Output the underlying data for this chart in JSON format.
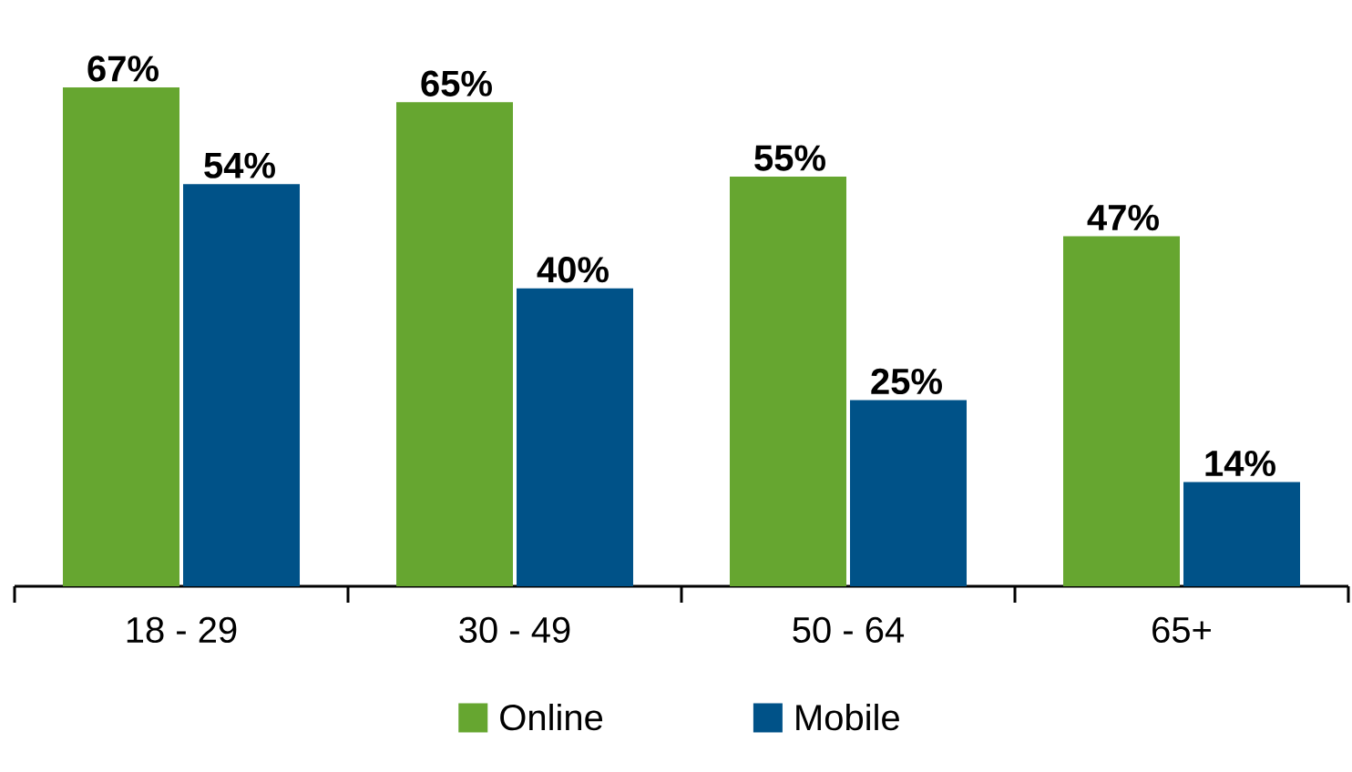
{
  "chart_data": {
    "type": "bar",
    "categories": [
      "18 - 29",
      "30 - 49",
      "50 - 64",
      "65+"
    ],
    "series": [
      {
        "name": "Online",
        "color": "#66a630",
        "values": [
          67,
          65,
          55,
          47
        ],
        "value_labels": [
          "67%",
          "65%",
          "55%",
          "47%"
        ]
      },
      {
        "name": "Mobile",
        "color": "#005288",
        "values": [
          54,
          40,
          25,
          14
        ],
        "value_labels": [
          "54%",
          "40%",
          "25%",
          "14%"
        ]
      }
    ],
    "legend": "bottom",
    "grid": false
  }
}
